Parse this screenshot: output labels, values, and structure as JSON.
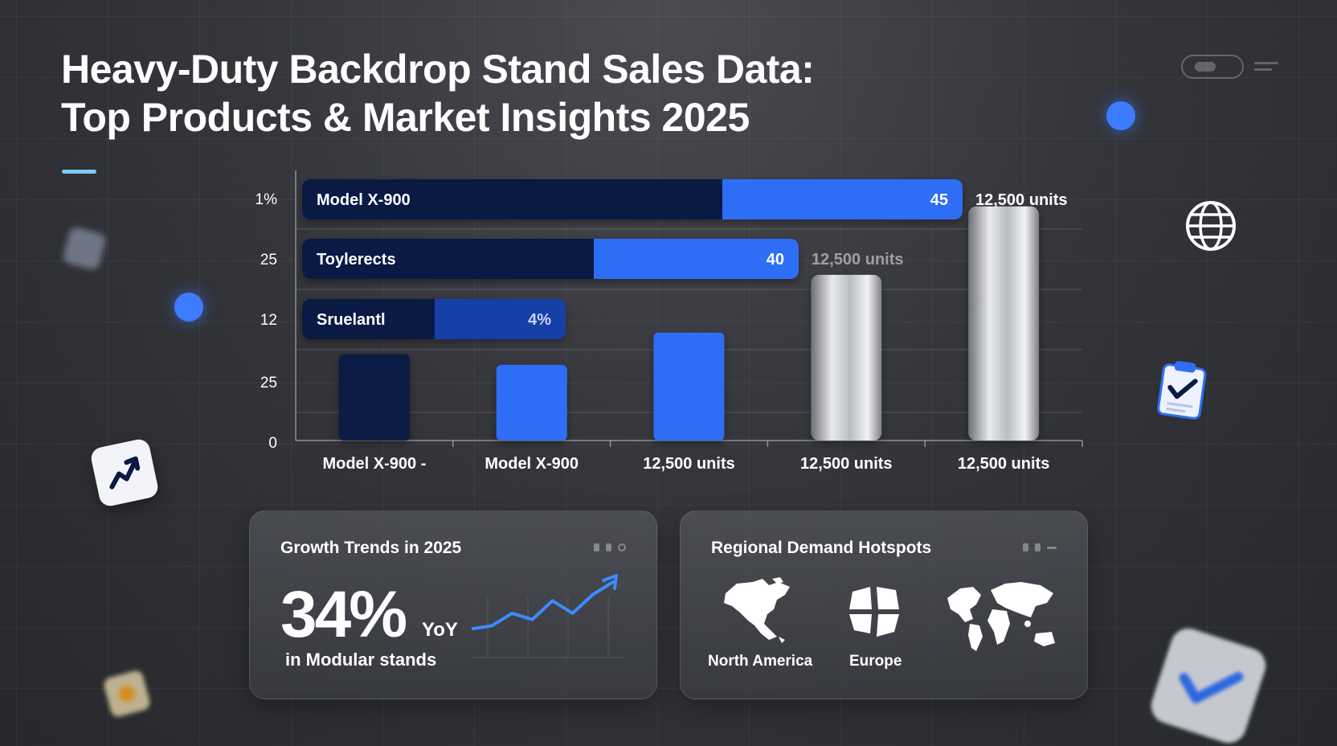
{
  "title": {
    "line1": "Heavy-Duty Backdrop Stand Sales Data:",
    "line2": "Top Products & Market Insights 2025"
  },
  "colors": {
    "navy": "#0a1a45",
    "blue": "#2e6ef5",
    "mid_blue": "#173fa8",
    "accent": "#7ec8ff",
    "dot_blue": "#3d7bff"
  },
  "chart_data": {
    "type": "bar",
    "y_tick_labels": [
      "1%",
      "25",
      "12",
      "25",
      "0"
    ],
    "horizontal_bars": [
      {
        "label": "Model X-900",
        "value_label": "45",
        "value": 45,
        "units_label": "12,500 units",
        "units_dim": false
      },
      {
        "label": "Toylerects",
        "value_label": "40",
        "value": 40,
        "units_label": "12,500 units",
        "units_dim": true
      },
      {
        "label": "Sruelantl",
        "value_label": "4%",
        "value": 4,
        "units_label": "",
        "units_dim": false
      }
    ],
    "vertical_bars": {
      "categories": [
        "Model X-900 -",
        "Model X-900",
        "12,500 units",
        "12,500 units",
        "12,500 units"
      ],
      "values": [
        24,
        21,
        30,
        46,
        65
      ],
      "styles": [
        "navy",
        "blue",
        "blue",
        "silver",
        "silver"
      ],
      "ylim": [
        0,
        75
      ]
    }
  },
  "growth_panel": {
    "title": "Growth Trends in 2025",
    "value": "34%",
    "unit": "YoY",
    "subtitle": "in Modular stands",
    "trend_values": [
      3,
      4,
      8,
      6,
      12,
      8,
      14,
      18
    ]
  },
  "region_panel": {
    "title": "Regional Demand Hotspots",
    "regions": [
      "North America",
      "Europe"
    ]
  },
  "icons": [
    "toggle-icon",
    "menu-lines-icon",
    "globe-icon",
    "clipboard-check-icon",
    "trend-up-icon",
    "checkmark-icon"
  ]
}
